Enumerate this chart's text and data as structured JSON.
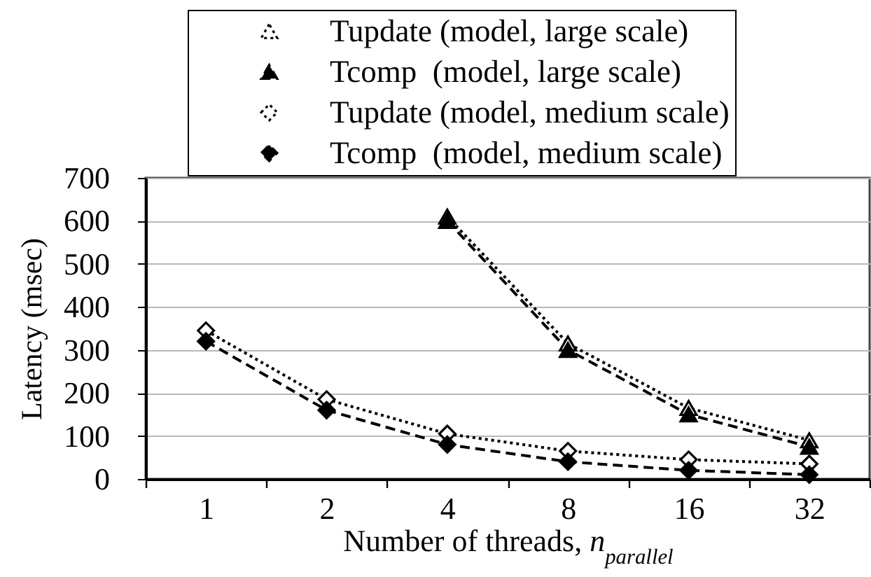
{
  "chart_data": {
    "type": "line",
    "xlabel": "Number of threads, n$_{parallel}$",
    "ylabel": "Latency (msec)",
    "categories": [
      "1",
      "2",
      "4",
      "8",
      "16",
      "32"
    ],
    "ylim": [
      0,
      700
    ],
    "yticks": [
      0,
      100,
      200,
      300,
      400,
      500,
      600,
      700
    ],
    "grid": "y",
    "legend": "top",
    "series": [
      {
        "name": "Tupdate (model, large scale)",
        "color": "#000000",
        "marker": "triangle",
        "line_style": "dotted",
        "values": [
          null,
          null,
          610,
          315,
          165,
          90
        ]
      },
      {
        "name": "Tcomp  (model, large scale)",
        "color": "#000000",
        "marker": "triangle",
        "line_style": "dashed",
        "values": [
          null,
          null,
          600,
          300,
          150,
          75
        ]
      },
      {
        "name": "Tupdate (model, medium scale)",
        "color": "#000000",
        "marker": "diamond",
        "line_style": "dotted",
        "values": [
          345,
          185,
          105,
          65,
          45,
          35
        ]
      },
      {
        "name": "Tcomp  (model, medium scale)",
        "color": "#000000",
        "marker": "diamond",
        "line_style": "dashed",
        "values": [
          320,
          160,
          80,
          40,
          20,
          10
        ]
      }
    ]
  }
}
